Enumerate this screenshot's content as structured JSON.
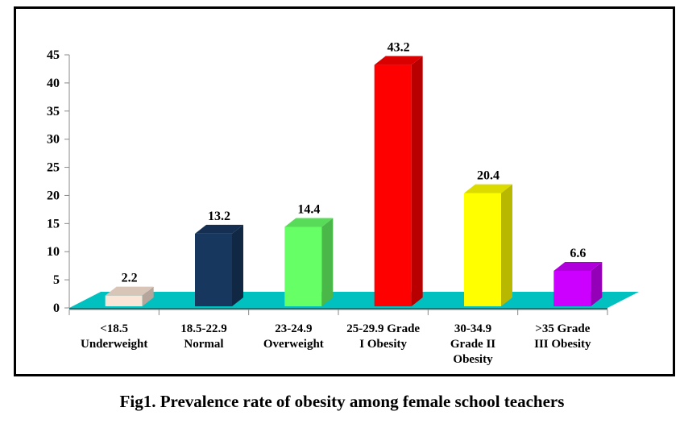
{
  "chart_data": {
    "type": "bar",
    "style": "3d-column",
    "title": "Fig1. Prevalence rate of obesity among female school teachers",
    "xlabel": "",
    "ylabel": "",
    "ylim": [
      0,
      45
    ],
    "yticks": [
      0,
      5,
      10,
      15,
      20,
      25,
      30,
      35,
      40,
      45
    ],
    "legend": "none",
    "categories": [
      [
        "<18.5",
        "Underweight"
      ],
      [
        "18.5-22.9",
        "Normal"
      ],
      [
        "23-24.9",
        "Overweight"
      ],
      [
        "25-29.9 Grade",
        "I Obesity"
      ],
      [
        "30-34.9",
        "Grade II",
        "Obesity"
      ],
      [
        ">35  Grade",
        "III Obesity"
      ]
    ],
    "values": [
      2.2,
      13.2,
      14.4,
      43.2,
      20.4,
      6.6
    ],
    "value_labels": [
      "2.2",
      "13.2",
      "14.4",
      "43.2",
      "20.4",
      "6.6"
    ],
    "colors": [
      "#fbe5d6",
      "#17375e",
      "#66ff66",
      "#ff0000",
      "#ffff00",
      "#cc00ff"
    ],
    "floor_color": "#00c0c0"
  }
}
